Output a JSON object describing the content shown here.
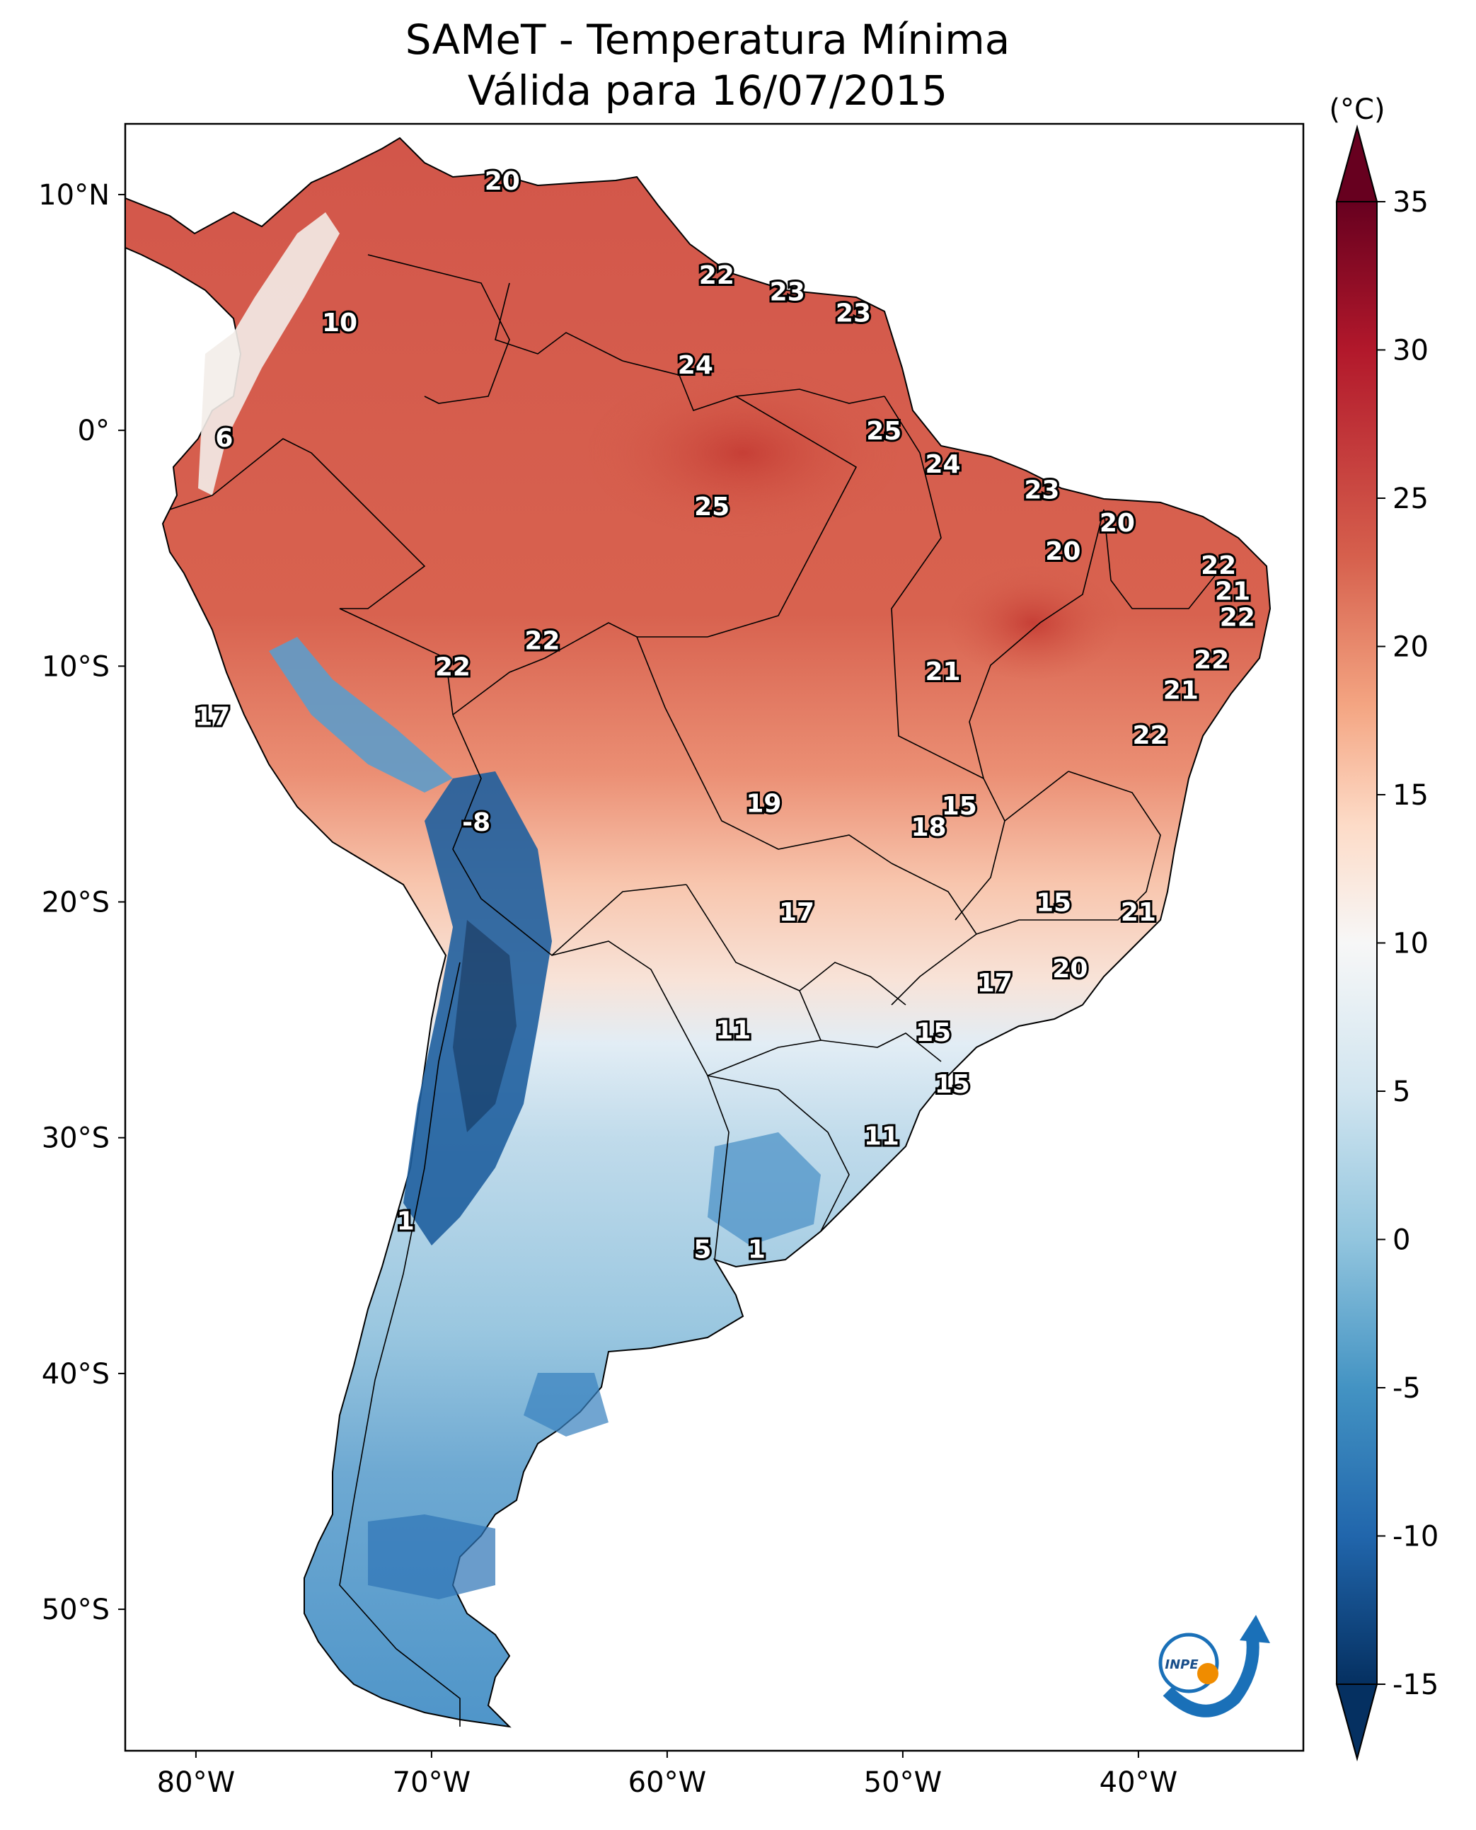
{
  "title": {
    "line1": "SAMeT - Temperatura Mínima",
    "line2": "Válida para 16/07/2015"
  },
  "map": {
    "lat_ticks": [
      "10°N",
      "0°",
      "10°S",
      "20°S",
      "30°S",
      "40°S",
      "50°S"
    ],
    "lon_ticks": [
      "80°W",
      "70°W",
      "60°W",
      "50°W",
      "40°W"
    ],
    "extent": {
      "lon_min": -83,
      "lon_max": -33,
      "lat_min": -56,
      "lat_max": 13
    },
    "contour_labels": [
      {
        "text": "20",
        "lon": -67,
        "lat": 10.6
      },
      {
        "text": "22",
        "lon": -57.9,
        "lat": 6.6
      },
      {
        "text": "23",
        "lon": -54.9,
        "lat": 5.9
      },
      {
        "text": "23",
        "lon": -52.1,
        "lat": 5.0
      },
      {
        "text": "10",
        "lon": -73.9,
        "lat": 4.6
      },
      {
        "text": "24",
        "lon": -58.8,
        "lat": 2.8
      },
      {
        "text": "6",
        "lon": -78.8,
        "lat": -0.3
      },
      {
        "text": "25",
        "lon": -50.8,
        "lat": 0.0
      },
      {
        "text": "24",
        "lon": -48.3,
        "lat": -1.4
      },
      {
        "text": "23",
        "lon": -44.1,
        "lat": -2.5
      },
      {
        "text": "25",
        "lon": -58.1,
        "lat": -3.2
      },
      {
        "text": "20",
        "lon": -40.9,
        "lat": -3.9
      },
      {
        "text": "20",
        "lon": -43.2,
        "lat": -5.1
      },
      {
        "text": "22",
        "lon": -36.6,
        "lat": -5.7
      },
      {
        "text": "21",
        "lon": -36.0,
        "lat": -6.8
      },
      {
        "text": "22",
        "lon": -35.8,
        "lat": -7.9
      },
      {
        "text": "22",
        "lon": -65.3,
        "lat": -8.9
      },
      {
        "text": "22",
        "lon": -69.1,
        "lat": -10.0
      },
      {
        "text": "22",
        "lon": -36.9,
        "lat": -9.7
      },
      {
        "text": "21",
        "lon": -48.3,
        "lat": -10.2
      },
      {
        "text": "21",
        "lon": -38.2,
        "lat": -11.0
      },
      {
        "text": "17",
        "lon": -79.3,
        "lat": -12.1
      },
      {
        "text": "22",
        "lon": -39.5,
        "lat": -12.9
      },
      {
        "text": "19",
        "lon": -55.9,
        "lat": -15.8
      },
      {
        "text": "15",
        "lon": -47.6,
        "lat": -15.9
      },
      {
        "text": "18",
        "lon": -48.9,
        "lat": -16.8
      },
      {
        "text": "-8",
        "lon": -68.1,
        "lat": -16.6
      },
      {
        "text": "15",
        "lon": -43.6,
        "lat": -20.0
      },
      {
        "text": "17",
        "lon": -54.5,
        "lat": -20.4
      },
      {
        "text": "21",
        "lon": -40.0,
        "lat": -20.4
      },
      {
        "text": "20",
        "lon": -42.9,
        "lat": -22.8
      },
      {
        "text": "17",
        "lon": -46.1,
        "lat": -23.4
      },
      {
        "text": "11",
        "lon": -57.2,
        "lat": -25.4
      },
      {
        "text": "15",
        "lon": -48.7,
        "lat": -25.5
      },
      {
        "text": "15",
        "lon": -47.9,
        "lat": -27.7
      },
      {
        "text": "11",
        "lon": -50.9,
        "lat": -29.9
      },
      {
        "text": "1",
        "lon": -71.1,
        "lat": -33.5
      },
      {
        "text": "5",
        "lon": -58.5,
        "lat": -34.7
      },
      {
        "text": "1",
        "lon": -56.2,
        "lat": -34.7
      }
    ]
  },
  "colorbar": {
    "unit": "(°C)",
    "min": -15,
    "max": 35,
    "tick_values": [
      35,
      30,
      25,
      20,
      15,
      10,
      5,
      0,
      -5,
      -10,
      -15
    ],
    "tick_labels": [
      "35",
      "30",
      "25",
      "20",
      "15",
      "10",
      "5",
      "0",
      "-5",
      "-10",
      "-15"
    ],
    "colors": [
      "#053061",
      "#2166ac",
      "#4393c3",
      "#92c5de",
      "#d1e5f0",
      "#f7f7f7",
      "#fddbc7",
      "#f4a582",
      "#d6604d",
      "#b2182b",
      "#67001f"
    ],
    "stop_values": [
      -15,
      -10,
      -5,
      0,
      5,
      10,
      14,
      18,
      23,
      30,
      35
    ]
  },
  "logo": {
    "text": "INPE"
  }
}
